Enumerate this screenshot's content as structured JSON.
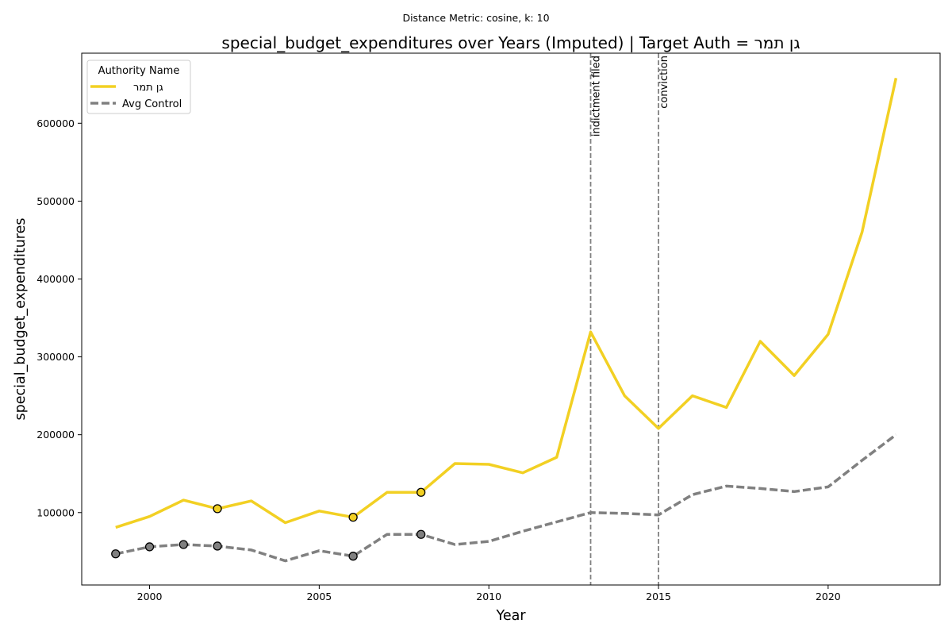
{
  "chart_data": {
    "type": "line",
    "suptitle": "Distance Metric: cosine, k: 10",
    "title": "special_budget_expenditures over Years (Imputed) | Target Auth = גן תמר",
    "xlabel": "Year",
    "ylabel": "special_budget_expenditures",
    "xlim": [
      1998,
      2023.3
    ],
    "ylim": [
      7000,
      690000
    ],
    "xticks": [
      2000,
      2005,
      2010,
      2015,
      2020
    ],
    "yticks": [
      100000,
      200000,
      300000,
      400000,
      500000,
      600000
    ],
    "grid": false,
    "legend": {
      "title": "Authority Name",
      "location": "upper-left"
    },
    "x": [
      1999,
      2000,
      2001,
      2002,
      2003,
      2004,
      2005,
      2006,
      2007,
      2008,
      2009,
      2010,
      2011,
      2012,
      2013,
      2014,
      2015,
      2016,
      2017,
      2018,
      2019,
      2020,
      2021,
      2022
    ],
    "series": [
      {
        "name": "גן תמר",
        "color": "#f2d023",
        "style": "solid",
        "values": [
          81000,
          95000,
          116000,
          105000,
          115000,
          87000,
          102000,
          94000,
          126000,
          126000,
          163000,
          162000,
          151000,
          171000,
          332000,
          250000,
          208000,
          250000,
          235000,
          320000,
          276000,
          329000,
          460000,
          658000
        ],
        "imputed_marker_years": [
          2002,
          2006,
          2008
        ]
      },
      {
        "name": "Avg Control",
        "color": "#808080",
        "style": "dashed",
        "values": [
          47000,
          56000,
          59000,
          57000,
          52000,
          38000,
          51000,
          44000,
          72000,
          72000,
          59000,
          63000,
          76000,
          88000,
          100000,
          99000,
          97000,
          123000,
          134000,
          131000,
          127000,
          133000,
          167000,
          200000
        ],
        "imputed_marker_years": [
          1999,
          2000,
          2001,
          2002,
          2006,
          2008
        ]
      }
    ],
    "event_lines": [
      {
        "x": 2013,
        "label": "indictment filed"
      },
      {
        "x": 2015,
        "label": "conviction"
      }
    ],
    "ytick_labels": [
      "100000",
      "200000",
      "300000",
      "400000",
      "500000",
      "600000"
    ],
    "xtick_labels": [
      "2000",
      "2005",
      "2010",
      "2015",
      "2020"
    ]
  }
}
